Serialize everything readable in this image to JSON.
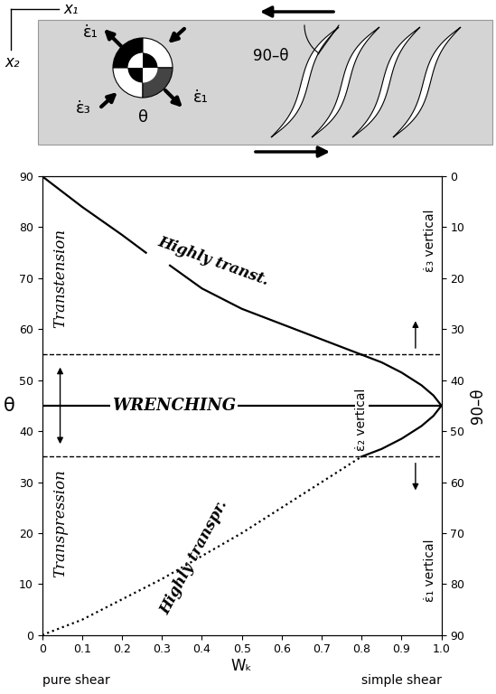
{
  "diagram": {
    "labels": {
      "x1": "x₁",
      "x2": "x₂",
      "e1_top": "ε̇₁",
      "e3": "ε̇₃",
      "e1_bottom": "ε̇₁",
      "angle_complement": "90–θ",
      "angle": "θ"
    }
  },
  "chart_data": {
    "type": "line",
    "x_label": "Wₖ",
    "y_label": "θ",
    "y2_label": "90–θ",
    "xlim": [
      0,
      1.0
    ],
    "xticks": [
      0,
      0.1,
      0.2,
      0.3,
      0.4,
      0.5,
      0.6,
      0.7,
      0.8,
      0.9,
      1.0
    ],
    "ylim": [
      0,
      90
    ],
    "yticks": [
      0,
      10,
      20,
      30,
      40,
      50,
      60,
      70,
      80,
      90
    ],
    "y2lim": [
      90,
      0
    ],
    "y2ticks": [
      0,
      10,
      20,
      30,
      40,
      50,
      60,
      70,
      80,
      90
    ],
    "x_end_labels": [
      "pure shear",
      "simple shear"
    ],
    "annotations": {
      "transtension": "Transtension",
      "transpression": "Transpression",
      "wrenching": "WRENCHING",
      "highly_transt": "Highly transt.",
      "highly_transpr": "Highly transpr.",
      "e2": "ε̇₂ vertical",
      "e3": "ε̇₃ vertical",
      "e1": "ε̇₁ vertical"
    },
    "series": [
      {
        "color": "#000000",
        "line_style": "solid",
        "x": [
          0,
          0.1,
          0.2,
          0.26,
          0.29,
          0.32,
          0.4,
          0.5,
          0.6,
          0.7,
          0.8
        ],
        "values": [
          90,
          84,
          78.5,
          75,
          null,
          72.5,
          68,
          64,
          61,
          58,
          55
        ]
      },
      {
        "color": "#000000",
        "line_style": "solid",
        "x": [
          0.8,
          0.85,
          0.9,
          0.95,
          0.98,
          1.0,
          0.98,
          0.95,
          0.9,
          0.85,
          0.8
        ],
        "values": [
          55,
          53.5,
          51.5,
          49,
          47,
          45,
          43,
          41,
          38.5,
          36.5,
          35
        ]
      },
      {
        "color": "#000000",
        "line_style": "dotted",
        "x": [
          0,
          0.1,
          0.2,
          0.3,
          0.4,
          0.5,
          0.6,
          0.7,
          0.8
        ],
        "values": [
          0,
          3,
          7,
          11,
          15.5,
          20,
          25,
          30,
          35
        ]
      },
      {
        "color": "#000000",
        "line_style": "dashed",
        "x": [
          0,
          1.0
        ],
        "values": [
          55,
          55
        ]
      },
      {
        "color": "#000000",
        "line_style": "dashed",
        "x": [
          0,
          1.0
        ],
        "values": [
          35,
          35
        ]
      },
      {
        "color": "#000000",
        "line_style": "solid",
        "x": [
          0,
          1.0
        ],
        "values": [
          45,
          45
        ]
      }
    ]
  }
}
